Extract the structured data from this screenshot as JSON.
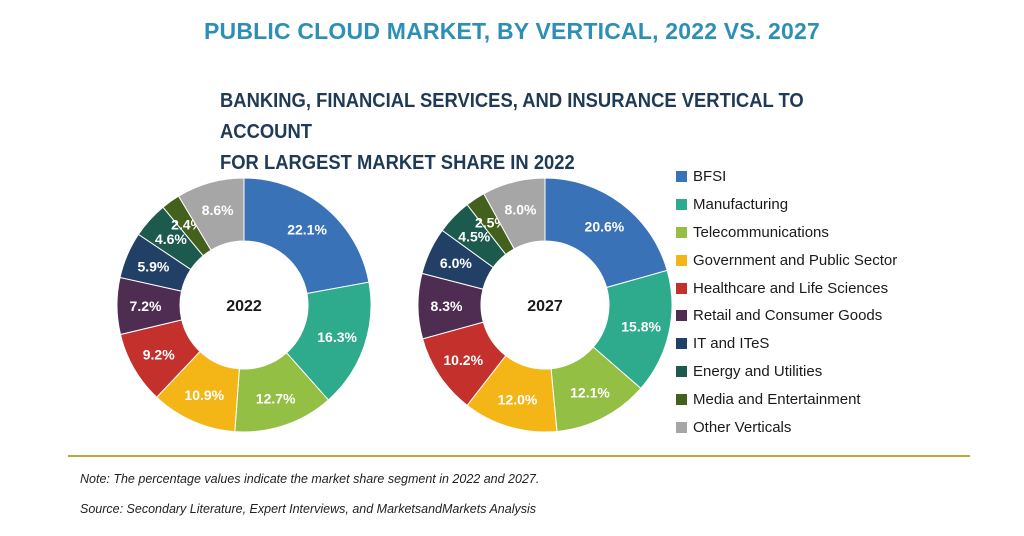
{
  "header": {
    "title": "PUBLIC CLOUD MARKET, BY VERTICAL, 2022 VS. 2027",
    "subtitle_line1": "BANKING, FINANCIAL SERVICES, AND INSURANCE VERTICAL TO ACCOUNT",
    "subtitle_line2": "FOR LARGEST MARKET SHARE IN 2022"
  },
  "footer": {
    "note": "Note: The percentage values indicate the market share segment in 2022 and 2027.",
    "source": "Source: Secondary Literature, Expert Interviews, and MarketsandMarkets Analysis"
  },
  "legend": {
    "items": [
      {
        "label": "BFSI",
        "color": "#3a72b8"
      },
      {
        "label": "Manufacturing",
        "color": "#2eaa8c"
      },
      {
        "label": "Telecommunications",
        "color": "#93bf44"
      },
      {
        "label": "Government and Public Sector",
        "color": "#f4b617"
      },
      {
        "label": "Healthcare and Life Sciences",
        "color": "#c4302b"
      },
      {
        "label": "Retail and Consumer Goods",
        "color": "#4f2c52"
      },
      {
        "label": "IT and ITeS",
        "color": "#223f66"
      },
      {
        "label": "Energy and Utilities",
        "color": "#1d5a4e"
      },
      {
        "label": "Media and Entertainment",
        "color": "#43601d"
      },
      {
        "label": "Other Verticals",
        "color": "#a6a6a6"
      }
    ]
  },
  "chart_data": [
    {
      "type": "pie",
      "center_label": "2022",
      "categories": [
        "BFSI",
        "Manufacturing",
        "Telecommunications",
        "Government and Public Sector",
        "Healthcare and Life Sciences",
        "Retail and Consumer Goods",
        "IT and ITeS",
        "Energy and Utilities",
        "Media and Entertainment",
        "Other Verticals"
      ],
      "values": [
        22.1,
        16.3,
        12.7,
        10.9,
        9.2,
        7.2,
        5.9,
        4.6,
        2.4,
        8.6
      ],
      "labels": [
        "22.1%",
        "16.3%",
        "12.7%",
        "10.9%",
        "9.2%",
        "7.2%",
        "5.9%",
        "4.6%",
        "2.4%",
        "8.6%"
      ]
    },
    {
      "type": "pie",
      "center_label": "2027",
      "categories": [
        "BFSI",
        "Manufacturing",
        "Telecommunications",
        "Government and Public Sector",
        "Healthcare and Life Sciences",
        "Retail and Consumer Goods",
        "IT and ITeS",
        "Energy and Utilities",
        "Media and Entertainment",
        "Other Verticals"
      ],
      "values": [
        20.6,
        15.8,
        12.1,
        12.0,
        10.2,
        8.3,
        6.0,
        4.5,
        2.5,
        8.0
      ],
      "labels": [
        "20.6%",
        "15.8%",
        "12.1%",
        "12.0%",
        "10.2%",
        "8.3%",
        "6.0%",
        "4.5%",
        "2.5%",
        "8.0%"
      ]
    }
  ]
}
